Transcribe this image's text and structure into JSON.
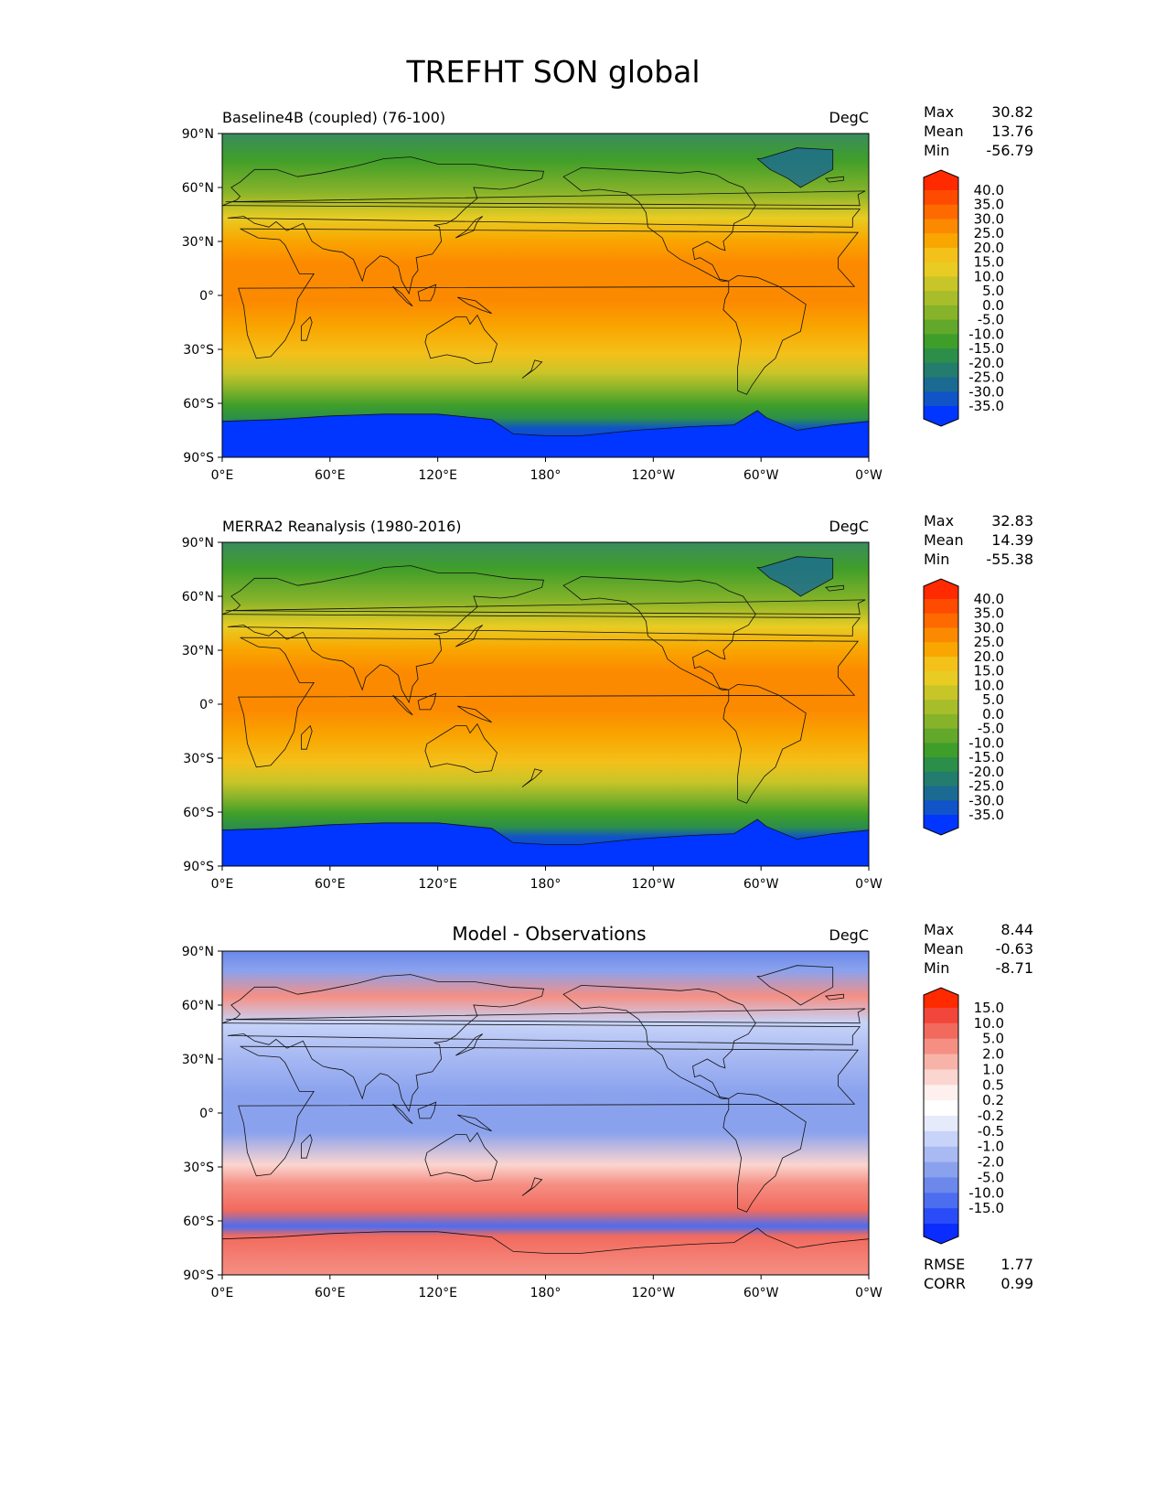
{
  "title": "TREFHT SON global",
  "y_tick_labels": [
    "90°N",
    "60°N",
    "30°N",
    "0°",
    "30°S",
    "60°S",
    "90°S"
  ],
  "x_tick_labels": [
    "0°E",
    "60°E",
    "120°E",
    "180°",
    "120°W",
    "60°W",
    "0°W"
  ],
  "panels": [
    {
      "left_title": "Baseline4B (coupled) (76-100)",
      "center_title": "",
      "units": "DegC",
      "stats": [
        {
          "label": "Max",
          "value": "30.82"
        },
        {
          "label": "Mean",
          "value": "13.76"
        },
        {
          "label": "Min",
          "value": "-56.79"
        }
      ],
      "colorbar_labels": [
        "40.0",
        "35.0",
        "30.0",
        "25.0",
        "20.0",
        "15.0",
        "10.0",
        "5.0",
        "0.0",
        "-5.0",
        "-10.0",
        "-15.0",
        "-20.0",
        "-25.0",
        "-30.0",
        "-35.0"
      ],
      "colorbar_colors": [
        "#ff2a00",
        "#ff4b00",
        "#fe6a00",
        "#fc8a00",
        "#f9a600",
        "#f4c01a",
        "#e8cc24",
        "#c8c528",
        "#a8bd2a",
        "#86b32a",
        "#62a82a",
        "#3f9e2a",
        "#2b8f4a",
        "#237c6d",
        "#1b6a92",
        "#1054c8",
        "#0036ff"
      ],
      "extra_stats": []
    },
    {
      "left_title": "MERRA2 Reanalysis (1980-2016)",
      "center_title": "",
      "units": "DegC",
      "stats": [
        {
          "label": "Max",
          "value": "32.83"
        },
        {
          "label": "Mean",
          "value": "14.39"
        },
        {
          "label": "Min",
          "value": "-55.38"
        }
      ],
      "colorbar_labels": [
        "40.0",
        "35.0",
        "30.0",
        "25.0",
        "20.0",
        "15.0",
        "10.0",
        "5.0",
        "0.0",
        "-5.0",
        "-10.0",
        "-15.0",
        "-20.0",
        "-25.0",
        "-30.0",
        "-35.0"
      ],
      "colorbar_colors": [
        "#ff2a00",
        "#ff4b00",
        "#fe6a00",
        "#fc8a00",
        "#f9a600",
        "#f4c01a",
        "#e8cc24",
        "#c8c528",
        "#a8bd2a",
        "#86b32a",
        "#62a82a",
        "#3f9e2a",
        "#2b8f4a",
        "#237c6d",
        "#1b6a92",
        "#1054c8",
        "#0036ff"
      ],
      "extra_stats": []
    },
    {
      "left_title": "",
      "center_title": "Model - Observations",
      "units": "DegC",
      "stats": [
        {
          "label": "Max",
          "value": "8.44"
        },
        {
          "label": "Mean",
          "value": "-0.63"
        },
        {
          "label": "Min",
          "value": "-8.71"
        }
      ],
      "colorbar_labels": [
        "15.0",
        "10.0",
        "5.0",
        "2.0",
        "1.0",
        "0.5",
        "0.2",
        "-0.2",
        "-0.5",
        "-1.0",
        "-2.0",
        "-5.0",
        "-10.0",
        "-15.0"
      ],
      "colorbar_colors": [
        "#ff2a00",
        "#f2463a",
        "#f26a5e",
        "#f58f84",
        "#f8b3a9",
        "#fbd5cf",
        "#fdf0ee",
        "#ffffff",
        "#e6ebfb",
        "#c7d3f8",
        "#a9baf3",
        "#8aa2ee",
        "#6b88ea",
        "#4d6df0",
        "#2a4cf8",
        "#0a2cff"
      ],
      "extra_stats": [
        {
          "label": "RMSE",
          "value": "1.77"
        },
        {
          "label": "CORR",
          "value": "0.99"
        }
      ]
    }
  ]
}
